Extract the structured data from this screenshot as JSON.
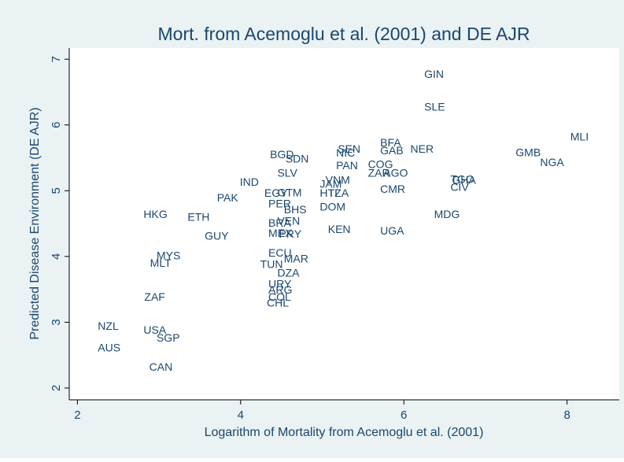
{
  "chart_data": {
    "type": "scatter",
    "title": "Mort. from Acemoglu et al. (2001) and DE AJR",
    "xlabel": "Logarithm of Mortality from Acemoglu et al. (2001)",
    "ylabel": "Predicted Disease Environment (DE AJR)",
    "color": "#1a476f",
    "labels": [
      "GIN",
      "SLE",
      "MLI",
      "GMB",
      "NGA",
      "BFA",
      "SEN",
      "NIC",
      "GAB",
      "NER",
      "BGD",
      "SDN",
      "PAN",
      "COG",
      "ZAR",
      "AGO",
      "SLV",
      "IND",
      "VNM",
      "TGO",
      "GHA",
      "CIV",
      "EGY",
      "GTM",
      "JAM",
      "HTI",
      "TZA",
      "CMR",
      "PAK",
      "PER",
      "BHS",
      "DOM",
      "HKG",
      "ETH",
      "MDG",
      "VEN",
      "BRA",
      "KEN",
      "UGA",
      "GUY",
      "MEX",
      "PRY",
      "MYS",
      "MLT",
      "ECU",
      "TUN",
      "MAR",
      "DZA",
      "URY",
      "ARG",
      "COL",
      "CHL",
      "ZAF",
      "NZL",
      "USA",
      "SGP",
      "AUS",
      "CAN"
    ],
    "x": [
      6.25,
      6.25,
      8.04,
      7.37,
      7.67,
      5.71,
      5.19,
      5.17,
      5.71,
      6.08,
      4.36,
      4.55,
      5.17,
      5.56,
      5.56,
      5.75,
      4.45,
      3.99,
      5.04,
      6.57,
      6.59,
      6.57,
      4.29,
      4.45,
      4.97,
      4.97,
      5.07,
      5.71,
      3.71,
      4.34,
      4.53,
      4.97,
      2.81,
      3.35,
      6.37,
      4.45,
      4.34,
      5.07,
      5.71,
      3.56,
      4.34,
      4.47,
      2.97,
      2.89,
      4.34,
      4.24,
      4.53,
      4.45,
      4.34,
      4.34,
      4.34,
      4.32,
      2.82,
      2.25,
      2.81,
      2.97,
      2.25,
      2.88
    ],
    "values": [
      6.76,
      6.26,
      5.81,
      5.57,
      5.42,
      5.72,
      5.62,
      5.56,
      5.6,
      5.62,
      5.54,
      5.47,
      5.37,
      5.39,
      5.26,
      5.26,
      5.26,
      5.12,
      5.15,
      5.16,
      5.15,
      5.04,
      4.95,
      4.96,
      5.09,
      4.95,
      4.95,
      5.01,
      4.88,
      4.79,
      4.7,
      4.74,
      4.63,
      4.59,
      4.63,
      4.53,
      4.5,
      4.4,
      4.38,
      4.3,
      4.34,
      4.33,
      4.0,
      3.89,
      4.04,
      3.87,
      3.95,
      3.74,
      3.57,
      3.48,
      3.37,
      3.28,
      3.37,
      2.93,
      2.87,
      2.75,
      2.6,
      2.31
    ],
    "xlim": [
      1.9,
      8.64
    ],
    "xticks": [
      2,
      4,
      6,
      8
    ],
    "ylim": [
      1.82,
      7.17
    ],
    "yticks": [
      2,
      3,
      4,
      5,
      6,
      7
    ]
  }
}
